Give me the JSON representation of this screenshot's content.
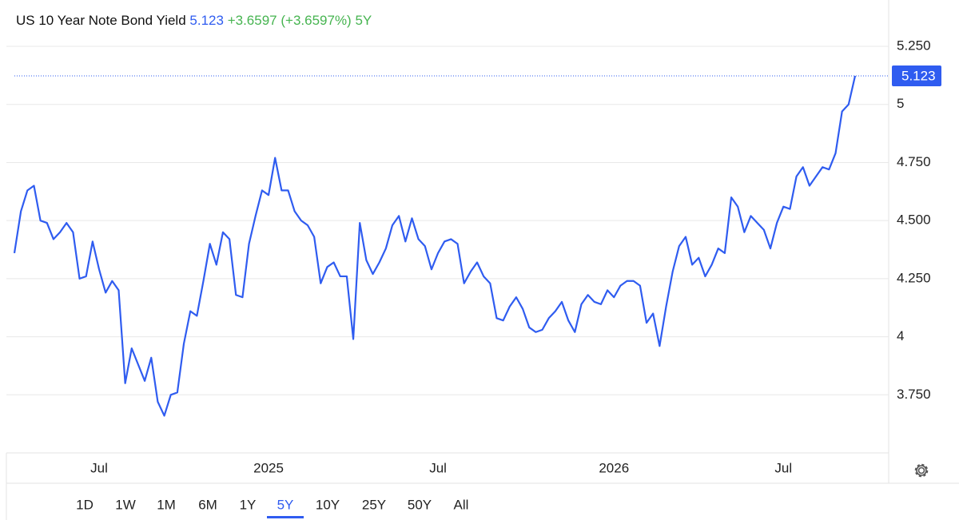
{
  "chart_data": {
    "type": "line",
    "title": "US 10 Year Note Bond Yield",
    "change": "+3.6597",
    "change_percent": "(+3.6597%)",
    "period": "5Y",
    "color": "#2f5cf0",
    "grid": true,
    "ylim": [
      3.5,
      5.312
    ],
    "yticks": [
      {
        "value": 5.25,
        "label": "5.250"
      },
      5,
      {
        "value": 4.75,
        "label": "4.750"
      },
      {
        "value": 4.5,
        "label": "4.500"
      },
      {
        "value": 4.25,
        "label": "4.250"
      },
      4,
      {
        "value": 3.75,
        "label": "3.750"
      }
    ],
    "categories": [
      null,
      null,
      null,
      null,
      null,
      null,
      null,
      null,
      null,
      null,
      null,
      null,
      null,
      "Jul",
      null,
      null,
      null,
      null,
      null,
      null,
      null,
      null,
      null,
      null,
      null,
      null,
      null,
      null,
      null,
      null,
      null,
      null,
      null,
      null,
      null,
      null,
      null,
      null,
      null,
      "2025",
      null,
      null,
      null,
      null,
      null,
      null,
      null,
      null,
      null,
      null,
      null,
      null,
      null,
      null,
      null,
      null,
      null,
      null,
      null,
      null,
      null,
      null,
      null,
      null,
      null,
      "Jul",
      null,
      null,
      null,
      null,
      null,
      null,
      null,
      null,
      null,
      null,
      null,
      null,
      null,
      null,
      null,
      null,
      null,
      null,
      null,
      null,
      null,
      null,
      null,
      null,
      null,
      null,
      "2026",
      null,
      null,
      null,
      null,
      null,
      null,
      null,
      null,
      null,
      null,
      null,
      null,
      null,
      null,
      null,
      null,
      null,
      null,
      null,
      null,
      null,
      null,
      null,
      null,
      null,
      "Jul",
      null,
      null,
      null,
      null,
      null,
      null,
      null,
      null,
      null,
      null,
      null
    ],
    "values": [
      4.36,
      4.54,
      4.63,
      4.65,
      4.5,
      4.49,
      4.42,
      4.45,
      4.49,
      4.45,
      4.25,
      4.26,
      4.41,
      4.29,
      4.19,
      4.24,
      4.2,
      3.8,
      3.95,
      3.88,
      3.81,
      3.91,
      3.72,
      3.66,
      3.75,
      3.76,
      3.97,
      4.11,
      4.09,
      4.24,
      4.4,
      4.31,
      4.45,
      4.42,
      4.18,
      4.17,
      4.4,
      4.52,
      4.63,
      4.61,
      4.77,
      4.63,
      4.63,
      4.54,
      4.5,
      4.48,
      4.43,
      4.23,
      4.3,
      4.32,
      4.26,
      4.26,
      3.99,
      4.49,
      4.33,
      4.27,
      4.32,
      4.38,
      4.48,
      4.52,
      4.41,
      4.51,
      4.42,
      4.39,
      4.29,
      4.36,
      4.41,
      4.42,
      4.4,
      4.23,
      4.28,
      4.32,
      4.26,
      4.23,
      4.08,
      4.07,
      4.13,
      4.17,
      4.12,
      4.04,
      4.02,
      4.03,
      4.08,
      4.11,
      4.15,
      4.07,
      4.02,
      4.14,
      4.18,
      4.15,
      4.14,
      4.2,
      4.17,
      4.22,
      4.24,
      4.24,
      4.22,
      4.06,
      4.1,
      3.96,
      4.13,
      4.28,
      4.39,
      4.43,
      4.31,
      4.34,
      4.26,
      4.31,
      4.38,
      4.36,
      4.6,
      4.56,
      4.45,
      4.52,
      4.49,
      4.46,
      4.38,
      4.49,
      4.56,
      4.55,
      4.69,
      4.73,
      4.65,
      4.69,
      4.73,
      4.72,
      4.79,
      4.97,
      5.0,
      5.123
    ],
    "ranges": [
      "1D",
      "1W",
      "1M",
      "6M",
      "1Y",
      "5Y",
      "10Y",
      "25Y",
      "50Y",
      "All"
    ],
    "active_range_index": 5
  }
}
